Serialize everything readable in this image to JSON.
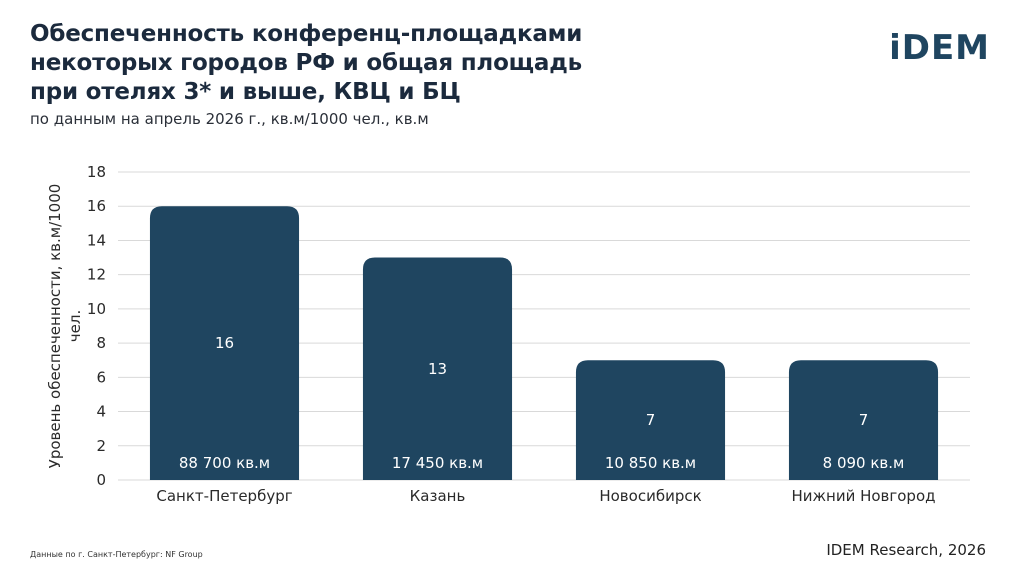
{
  "header": {
    "title_lines": [
      "Обеспеченность конференц-площадками",
      "некоторых городов РФ и общая площадь",
      "при отелях 3* и выше, КВЦ и БЦ"
    ],
    "subtitle": "по данным на апрель 2026 г., кв.м/1000 чел., кв.м",
    "logo": "iDEM"
  },
  "footer": {
    "note": "Данные по г. Санкт-Петербург: NF Group",
    "credit": "IDEM Research, 2026"
  },
  "chart_data": {
    "type": "bar",
    "categories": [
      "Санкт-Петербург",
      "Казань",
      "Новосибирск",
      "Нижний Новгород"
    ],
    "values": [
      16,
      13,
      7,
      7
    ],
    "value_labels": [
      "16",
      "13",
      "7",
      "7"
    ],
    "area_labels": [
      "88 700 кв.м",
      "17 450 кв.м",
      "10 850 кв.м",
      "8 090 кв.м"
    ],
    "ylabel_lines": [
      "Уровень обеспеченности, кв.м/1000",
      "чел."
    ],
    "ylim": [
      0,
      18
    ],
    "yticks": [
      0,
      2,
      4,
      6,
      8,
      10,
      12,
      14,
      16,
      18
    ],
    "grid": true,
    "bar_color": "#1f4560",
    "grid_color": "#d9d9d9"
  }
}
